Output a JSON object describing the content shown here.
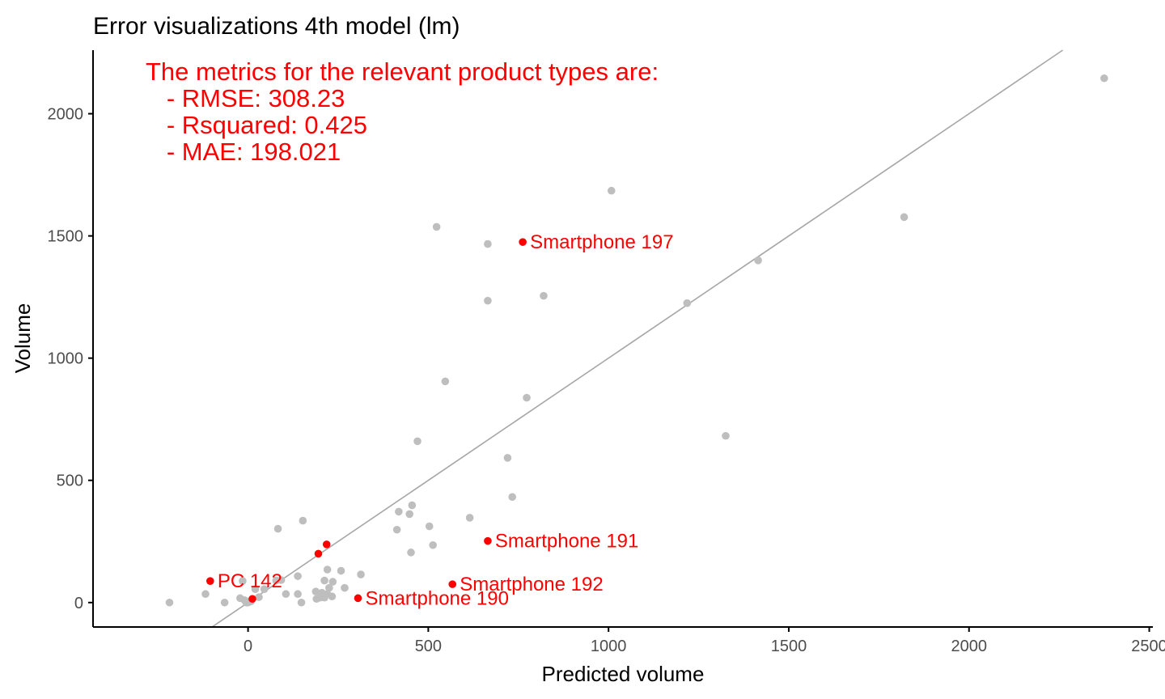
{
  "chart_data": {
    "type": "scatter",
    "title": "Error visualizations 4th model (lm)",
    "xlabel": "Predicted volume",
    "ylabel": "Volume",
    "xlim": [
      -430,
      2510
    ],
    "ylim": [
      -100,
      2260
    ],
    "x_ticks": [
      0,
      500,
      1000,
      1500,
      2000,
      2500
    ],
    "y_ticks": [
      0,
      500,
      1000,
      1500,
      2000
    ],
    "grid": false,
    "reference_line": {
      "type": "identity",
      "slope": 1,
      "intercept": 0,
      "color": "#a6a6a6"
    },
    "metrics_text": [
      "The metrics for the relevant product types are:",
      "   - RMSE: 308.23",
      "   - Rsquared: 0.425",
      "   - MAE: 198.021"
    ],
    "colors": {
      "other": "#bebebe",
      "relevant": "#ff0000",
      "metrics": "#ff0000",
      "axis": "#000000"
    },
    "series": [
      {
        "role": "other",
        "points": [
          [
            2375,
            2145
          ],
          [
            1008,
            1685
          ],
          [
            523,
            1537
          ],
          [
            665,
            1467
          ],
          [
            1820,
            1577
          ],
          [
            1415,
            1400
          ],
          [
            820,
            1255
          ],
          [
            665,
            1235
          ],
          [
            1218,
            1225
          ],
          [
            547,
            905
          ],
          [
            773,
            838
          ],
          [
            1325,
            682
          ],
          [
            470,
            660
          ],
          [
            720,
            592
          ],
          [
            733,
            432
          ],
          [
            455,
            398
          ],
          [
            418,
            372
          ],
          [
            448,
            362
          ],
          [
            615,
            347
          ],
          [
            152,
            335
          ],
          [
            503,
            312
          ],
          [
            83,
            302
          ],
          [
            413,
            298
          ],
          [
            513,
            235
          ],
          [
            452,
            205
          ],
          [
            313,
            115
          ],
          [
            138,
            108
          ],
          [
            220,
            135
          ],
          [
            258,
            130
          ],
          [
            78,
            90
          ],
          [
            92,
            92
          ],
          [
            -15,
            88
          ],
          [
            212,
            90
          ],
          [
            235,
            85
          ],
          [
            268,
            60
          ],
          [
            225,
            60
          ],
          [
            -118,
            35
          ],
          [
            20,
            55
          ],
          [
            45,
            55
          ],
          [
            105,
            35
          ],
          [
            138,
            35
          ],
          [
            188,
            45
          ],
          [
            205,
            40
          ],
          [
            220,
            35
          ],
          [
            233,
            25
          ],
          [
            30,
            22
          ],
          [
            190,
            15
          ],
          [
            -22,
            18
          ],
          [
            -10,
            10
          ],
          [
            -5,
            5
          ],
          [
            -5,
            0
          ],
          [
            0,
            0
          ],
          [
            8,
            5
          ],
          [
            -65,
            0
          ],
          [
            148,
            0
          ],
          [
            212,
            20
          ],
          [
            200,
            20
          ],
          [
            -218,
            0
          ]
        ]
      },
      {
        "role": "relevant",
        "points": [
          {
            "x": 762,
            "y": 1475,
            "label": "Smartphone 197"
          },
          {
            "x": 665,
            "y": 252,
            "label": "Smartphone 191"
          },
          {
            "x": 567,
            "y": 75,
            "label": "Smartphone 192"
          },
          {
            "x": 305,
            "y": 18,
            "label": "Smartphone 190"
          },
          {
            "x": -105,
            "y": 88,
            "label": "PC 142"
          },
          {
            "x": 218,
            "y": 238,
            "label": ""
          },
          {
            "x": 195,
            "y": 200,
            "label": ""
          },
          {
            "x": 12,
            "y": 15,
            "label": ""
          }
        ]
      }
    ]
  }
}
